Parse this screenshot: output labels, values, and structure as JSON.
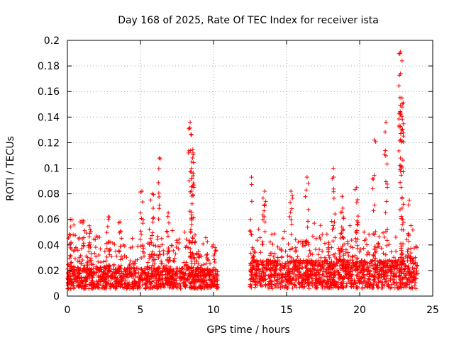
{
  "chart_data": {
    "type": "scatter",
    "title": "Day 168 of 2025, Rate Of TEC Index for receiver ista",
    "xlabel": "GPS time / hours",
    "ylabel": "ROTI / TECUs",
    "xlim": [
      0,
      25
    ],
    "ylim": [
      0,
      0.2
    ],
    "xticks": [
      0,
      5,
      10,
      15,
      20,
      25
    ],
    "yticks": [
      0,
      0.02,
      0.04,
      0.06,
      0.08,
      0.1,
      0.12,
      0.14,
      0.16,
      0.18,
      0.2
    ],
    "xtick_labels": [
      "0",
      "5",
      "10",
      "15",
      "20",
      "25"
    ],
    "ytick_labels": [
      "0",
      "0.02",
      "0.04",
      "0.06",
      "0.08",
      "0.1",
      "0.12",
      "0.14",
      "0.16",
      "0.18",
      "0.2"
    ],
    "grid": true,
    "marker": "+",
    "color": "#ff0000",
    "gap_hours": [
      10.3,
      12.5
    ],
    "peaks": [
      {
        "x": 0.2,
        "y": 0.06
      },
      {
        "x": 1.0,
        "y": 0.059
      },
      {
        "x": 1.5,
        "y": 0.055
      },
      {
        "x": 2.8,
        "y": 0.062
      },
      {
        "x": 3.6,
        "y": 0.058
      },
      {
        "x": 5.1,
        "y": 0.082
      },
      {
        "x": 5.8,
        "y": 0.08
      },
      {
        "x": 6.3,
        "y": 0.108
      },
      {
        "x": 6.9,
        "y": 0.065
      },
      {
        "x": 8.4,
        "y": 0.136
      },
      {
        "x": 8.5,
        "y": 0.126
      },
      {
        "x": 8.6,
        "y": 0.112
      },
      {
        "x": 8.5,
        "y": 0.092
      },
      {
        "x": 12.6,
        "y": 0.093
      },
      {
        "x": 13.5,
        "y": 0.082
      },
      {
        "x": 15.3,
        "y": 0.082
      },
      {
        "x": 16.4,
        "y": 0.093
      },
      {
        "x": 18.2,
        "y": 0.1
      },
      {
        "x": 18.8,
        "y": 0.078
      },
      {
        "x": 19.8,
        "y": 0.085
      },
      {
        "x": 21.0,
        "y": 0.122
      },
      {
        "x": 21.8,
        "y": 0.136
      },
      {
        "x": 22.8,
        "y": 0.191
      },
      {
        "x": 22.9,
        "y": 0.184
      },
      {
        "x": 22.8,
        "y": 0.174
      },
      {
        "x": 22.9,
        "y": 0.155
      },
      {
        "x": 22.8,
        "y": 0.143
      },
      {
        "x": 23.4,
        "y": 0.075
      }
    ],
    "segments": [
      {
        "start": 0.0,
        "end": 10.3,
        "base": 0.014,
        "spread": 0.012
      },
      {
        "start": 12.5,
        "end": 24.0,
        "base": 0.017,
        "spread": 0.016
      }
    ]
  }
}
